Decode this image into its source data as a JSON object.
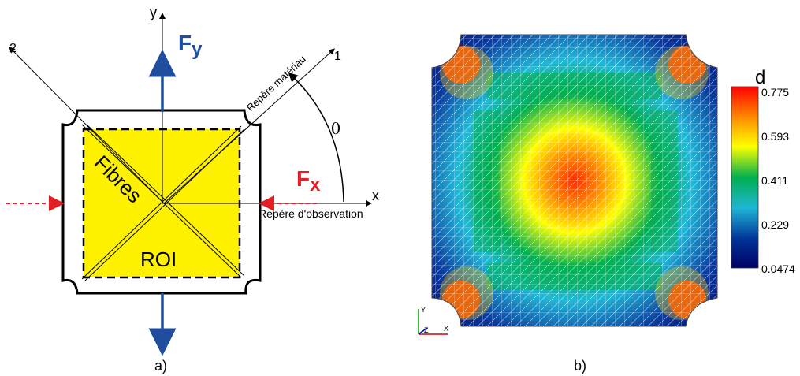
{
  "panel_a": {
    "caption": "a)",
    "axis_y": "y",
    "axis_x": "x",
    "axis_1": "1",
    "axis_2": "2",
    "force_y": {
      "main": "F",
      "sub": "y",
      "color": "#1f4e9e"
    },
    "force_x": {
      "main": "F",
      "sub": "x",
      "color": "#e31e24"
    },
    "theta": "θ",
    "material_frame": "Repère matériau",
    "observation_frame": "Repère d'observation",
    "fibres_label": "Fibres",
    "roi_label": "ROI",
    "roi_color": "#fff200"
  },
  "panel_b": {
    "caption": "b)",
    "colorbar": {
      "title": "d",
      "ticks": [
        "0.775",
        "0.593",
        "0.411",
        "0.229",
        "0.0474"
      ],
      "colors": [
        "#ff0000",
        "#ff8c00",
        "#ffff00",
        "#00b050",
        "#1fb5d5",
        "#003399",
        "#000066"
      ]
    },
    "triad": {
      "y": "Y",
      "z": "Z",
      "x": "X"
    }
  }
}
